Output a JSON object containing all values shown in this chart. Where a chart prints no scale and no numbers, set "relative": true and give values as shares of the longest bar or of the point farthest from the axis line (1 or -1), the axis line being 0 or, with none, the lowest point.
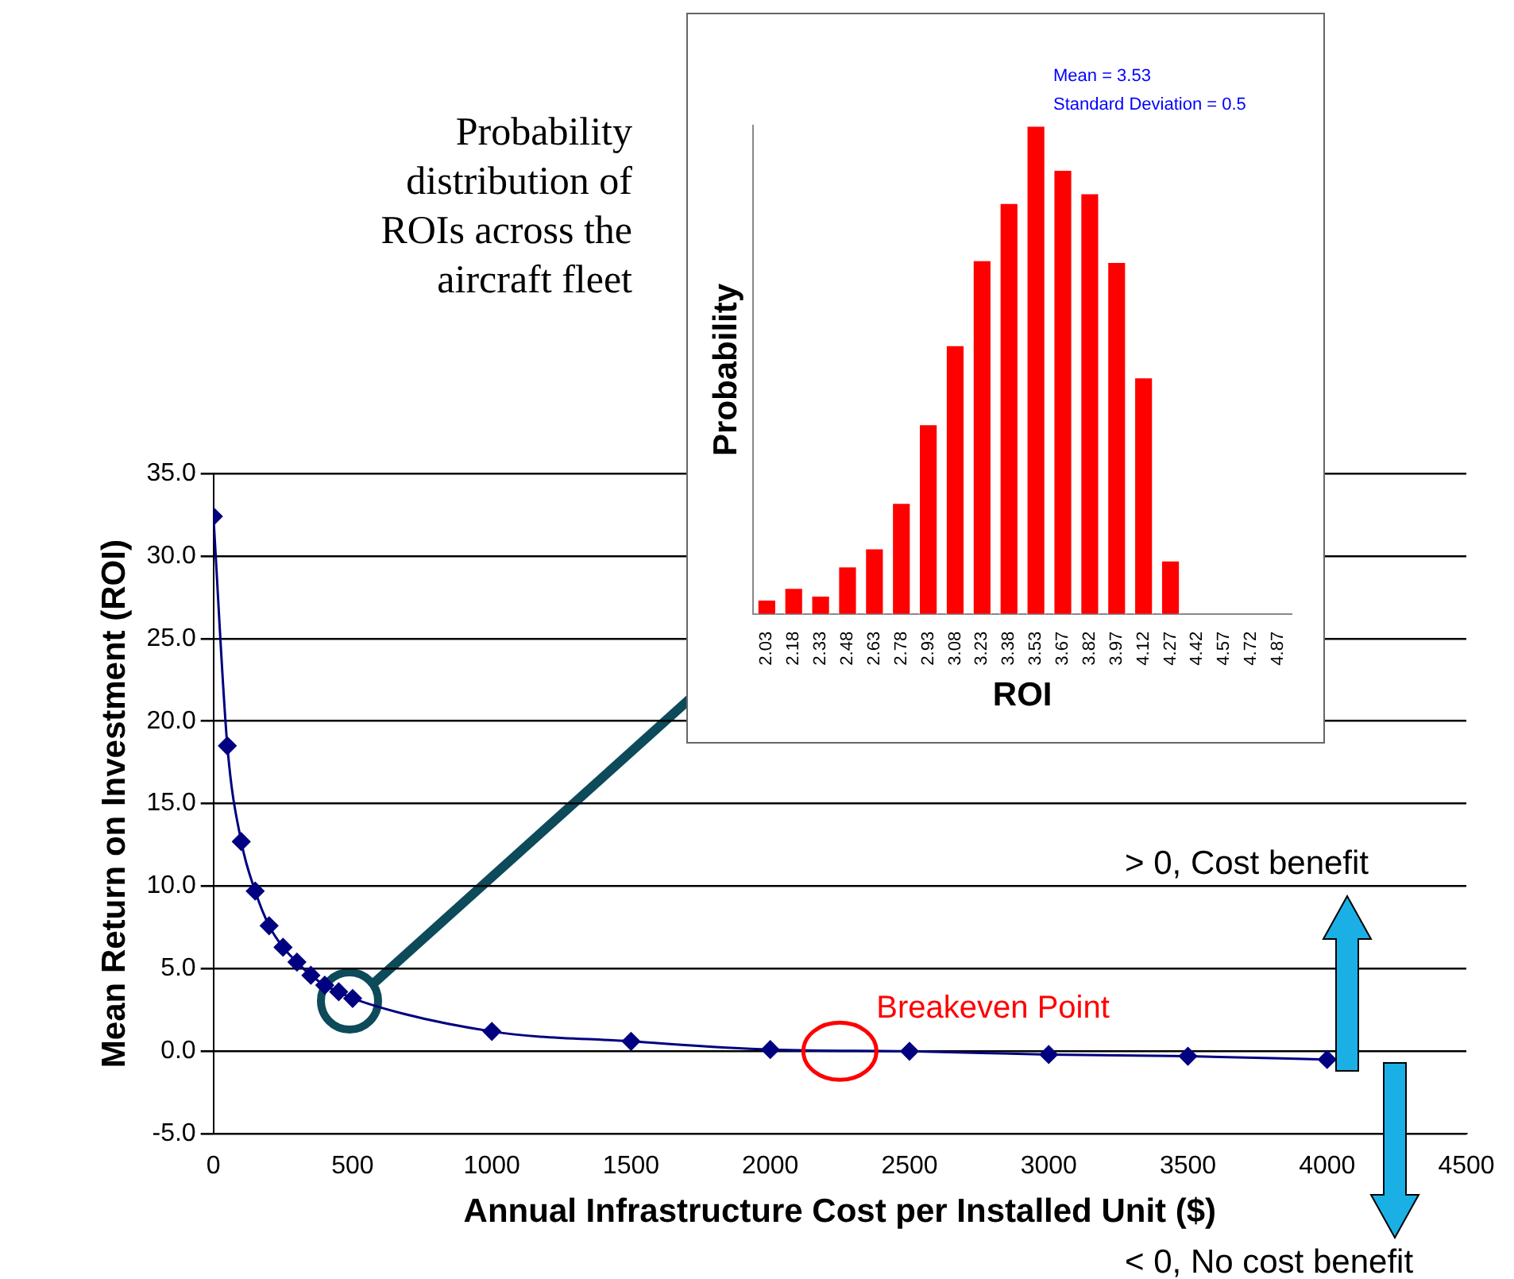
{
  "chart_data": [
    {
      "type": "line",
      "xlabel": "Annual Infrastructure Cost per Installed Unit ($)",
      "ylabel": "Mean Return on Investment (ROI)",
      "color": "#000080",
      "marker": "diamond",
      "grid": "y",
      "x": [
        0,
        50,
        100,
        150,
        200,
        250,
        300,
        350,
        400,
        450,
        500,
        1000,
        1500,
        2000,
        2500,
        3000,
        3500,
        4000
      ],
      "values": [
        32.4,
        18.5,
        12.7,
        9.7,
        7.6,
        6.3,
        5.4,
        4.6,
        4.0,
        3.6,
        3.2,
        1.2,
        0.6,
        0.1,
        0.0,
        -0.2,
        -0.3,
        -0.5
      ],
      "xlim": [
        0,
        4500
      ],
      "xticks": [
        0,
        500,
        1000,
        1500,
        2000,
        2500,
        3000,
        3500,
        4000,
        4500
      ],
      "ylim": [
        -5,
        35
      ],
      "yticks": [
        {
          "value": -5,
          "label": "-5.0"
        },
        {
          "value": 0,
          "label": "0.0"
        },
        {
          "value": 5,
          "label": "5.0"
        },
        {
          "value": 10,
          "label": "10.0"
        },
        {
          "value": 15,
          "label": "15.0"
        },
        {
          "value": 20,
          "label": "20.0"
        },
        {
          "value": 25,
          "label": "25.0"
        },
        {
          "value": 30,
          "label": "30.0"
        },
        {
          "value": 35,
          "label": "35.0"
        }
      ],
      "annotations": [
        {
          "text": "Breakeven Point",
          "x": 2250,
          "y": 0
        },
        "> 0, Cost benefit",
        "< 0, No cost benefit"
      ]
    },
    {
      "type": "bar",
      "title": "Probability distribution of ROIs across the aircraft fleet",
      "xlabel": "ROI",
      "ylabel": "Probability",
      "color": "#ff0000",
      "relative": true,
      "categories": [
        "2.03",
        "2.18",
        "2.33",
        "2.48",
        "2.63",
        "2.78",
        "2.93",
        "3.08",
        "3.23",
        "3.38",
        "3.53",
        "3.67",
        "3.82",
        "3.97",
        "4.12",
        "4.27",
        "4.42",
        "4.57",
        "4.72",
        "4.87"
      ],
      "values": [
        0.03,
        0.054,
        0.038,
        0.098,
        0.135,
        0.228,
        0.389,
        0.551,
        0.725,
        0.842,
        1,
        0.91,
        0.862,
        0.721,
        0.485,
        0.11,
        0,
        0,
        0,
        0
      ],
      "annotations": [
        "Mean = 3.53",
        "Standard Deviation = 0.5"
      ]
    }
  ]
}
